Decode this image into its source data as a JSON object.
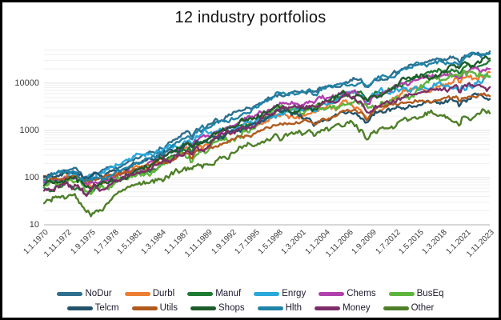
{
  "title": "12 industry portfolios",
  "chart_data": {
    "type": "line",
    "title": "12 industry portfolios",
    "xlabel": "",
    "ylabel": "",
    "y_axis": {
      "scale": "log",
      "min": 10,
      "max": 60000,
      "tick_labels": [
        "10",
        "100",
        "1000",
        "10000"
      ],
      "ticks": [
        10,
        100,
        1000,
        10000
      ]
    },
    "grid": "horizontal-log-minor",
    "legend_position": "bottom",
    "background_color": "#ffffff",
    "frame_border_color": "#000000",
    "gridline_color": "#ededed",
    "categories": [
      "1.1.1970",
      "1.11.1972",
      "1.9.1975",
      "1.7.1978",
      "1.5.1981",
      "1.3.1984",
      "1.1.1987",
      "1.11.1989",
      "1.9.1992",
      "1.7.1995",
      "1.5.1998",
      "1.3.2001",
      "1.1.2004",
      "1.11.2006",
      "1.9.2009",
      "1.7.2012",
      "1.5.2015",
      "1.3.2018",
      "1.1.2021",
      "1.11.2023"
    ],
    "series": [
      {
        "name": "NoDur",
        "color": "#2E6E8E",
        "values": [
          110,
          140,
          115,
          160,
          260,
          420,
          900,
          1300,
          2200,
          3200,
          6000,
          6200,
          8500,
          11000,
          11500,
          17000,
          25000,
          30000,
          36000,
          47000
        ]
      },
      {
        "name": "Durbl",
        "color": "#ED7D31",
        "values": [
          95,
          120,
          70,
          110,
          160,
          240,
          400,
          520,
          900,
          1300,
          2100,
          1800,
          3000,
          3600,
          2500,
          4500,
          7500,
          9000,
          14000,
          17000
        ]
      },
      {
        "name": "Manuf",
        "color": "#1E7B31",
        "values": [
          60,
          75,
          52,
          80,
          130,
          200,
          380,
          540,
          900,
          1500,
          2600,
          2800,
          4200,
          6200,
          5800,
          9000,
          13000,
          17000,
          24000,
          30000
        ]
      },
      {
        "name": "Enrgy",
        "color": "#29A8DC",
        "values": [
          75,
          100,
          110,
          170,
          330,
          340,
          600,
          900,
          1000,
          1500,
          2200,
          2700,
          3600,
          6500,
          6200,
          7800,
          7200,
          9200,
          7500,
          13500
        ]
      },
      {
        "name": "Chems",
        "color": "#B13FAE",
        "values": [
          80,
          100,
          80,
          100,
          155,
          260,
          480,
          780,
          1200,
          2000,
          3500,
          3400,
          4500,
          6000,
          5600,
          8500,
          12000,
          14500,
          17000,
          20000
        ]
      },
      {
        "name": "BusEq",
        "color": "#5DB53C",
        "values": [
          65,
          85,
          48,
          75,
          120,
          180,
          290,
          380,
          620,
          1100,
          3100,
          2300,
          2900,
          3500,
          3400,
          5000,
          7800,
          11000,
          15000,
          14000
        ]
      },
      {
        "name": "Telcm",
        "color": "#23536B",
        "values": [
          100,
          125,
          110,
          145,
          200,
          300,
          480,
          650,
          950,
          1400,
          2700,
          1900,
          1700,
          2500,
          2300,
          3100,
          3500,
          3800,
          4200,
          4600
        ]
      },
      {
        "name": "Utils",
        "color": "#B05A1E",
        "values": [
          90,
          100,
          85,
          110,
          150,
          205,
          330,
          430,
          660,
          860,
          1350,
          1500,
          1700,
          2600,
          2700,
          3600,
          4300,
          4600,
          4800,
          5300
        ]
      },
      {
        "name": "Shops",
        "color": "#1D5B2A",
        "values": [
          70,
          95,
          60,
          85,
          150,
          250,
          480,
          700,
          1200,
          1700,
          3300,
          3100,
          4400,
          5600,
          5800,
          8800,
          13500,
          17500,
          26000,
          33000
        ]
      },
      {
        "name": "Hlth",
        "color": "#2083A8",
        "values": [
          90,
          130,
          95,
          120,
          200,
          330,
          700,
          1150,
          1800,
          3000,
          6500,
          6800,
          7800,
          9300,
          10500,
          14500,
          26000,
          29000,
          38000,
          42000
        ]
      },
      {
        "name": "Money",
        "color": "#7D2E68",
        "values": [
          55,
          75,
          58,
          85,
          130,
          205,
          330,
          450,
          820,
          1300,
          2700,
          3100,
          4300,
          5100,
          2800,
          4100,
          6200,
          7200,
          8800,
          8200
        ]
      },
      {
        "name": "Other",
        "color": "#4E7F28",
        "values": [
          28,
          40,
          15,
          42,
          70,
          95,
          155,
          195,
          330,
          460,
          720,
          820,
          1100,
          1500,
          980,
          1300,
          1800,
          2100,
          1950,
          2300
        ]
      }
    ]
  }
}
